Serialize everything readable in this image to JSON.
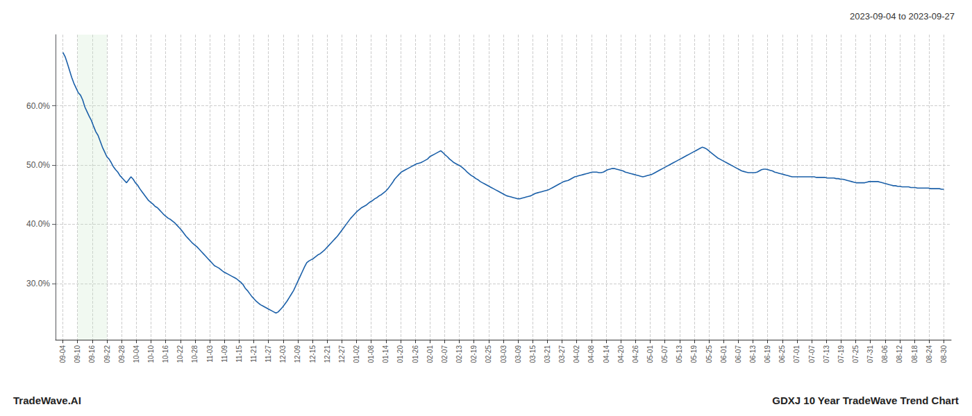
{
  "chart_data": {
    "type": "line",
    "annotations": [
      "2023-09-04 to 2023-09-27",
      "TradeWave.AI",
      "GDXJ 10 Year TradeWave Trend Chart"
    ],
    "color": "#1a5fa8",
    "grid": true,
    "highlight": {
      "from": 1,
      "to": 3,
      "color": "#c8e6c9"
    },
    "ylim": [
      0.205,
      0.72
    ],
    "yticks": [
      {
        "value": 0.3,
        "label": "30.0%"
      },
      {
        "value": 0.4,
        "label": "40.0%"
      },
      {
        "value": 0.5,
        "label": "50.0%"
      },
      {
        "value": 0.6,
        "label": "60.0%"
      }
    ],
    "xlim": [
      -0.5,
      60.5
    ],
    "xticks": [
      {
        "value": 0,
        "label": "09-04"
      },
      {
        "value": 1,
        "label": "09-10"
      },
      {
        "value": 2,
        "label": "09-16"
      },
      {
        "value": 3,
        "label": "09-22"
      },
      {
        "value": 4,
        "label": "09-28"
      },
      {
        "value": 5,
        "label": "10-04"
      },
      {
        "value": 6,
        "label": "10-10"
      },
      {
        "value": 7,
        "label": "10-16"
      },
      {
        "value": 8,
        "label": "10-22"
      },
      {
        "value": 9,
        "label": "10-28"
      },
      {
        "value": 10,
        "label": "11-03"
      },
      {
        "value": 11,
        "label": "11-09"
      },
      {
        "value": 12,
        "label": "11-15"
      },
      {
        "value": 13,
        "label": "11-21"
      },
      {
        "value": 14,
        "label": "11-27"
      },
      {
        "value": 15,
        "label": "12-03"
      },
      {
        "value": 16,
        "label": "12-09"
      },
      {
        "value": 17,
        "label": "12-15"
      },
      {
        "value": 18,
        "label": "12-21"
      },
      {
        "value": 19,
        "label": "12-27"
      },
      {
        "value": 20,
        "label": "01-02"
      },
      {
        "value": 21,
        "label": "01-08"
      },
      {
        "value": 22,
        "label": "01-14"
      },
      {
        "value": 23,
        "label": "01-20"
      },
      {
        "value": 24,
        "label": "01-26"
      },
      {
        "value": 25,
        "label": "02-01"
      },
      {
        "value": 26,
        "label": "02-07"
      },
      {
        "value": 27,
        "label": "02-13"
      },
      {
        "value": 28,
        "label": "02-19"
      },
      {
        "value": 29,
        "label": "02-25"
      },
      {
        "value": 30,
        "label": "03-03"
      },
      {
        "value": 31,
        "label": "03-09"
      },
      {
        "value": 32,
        "label": "03-15"
      },
      {
        "value": 33,
        "label": "03-21"
      },
      {
        "value": 34,
        "label": "03-27"
      },
      {
        "value": 35,
        "label": "04-02"
      },
      {
        "value": 36,
        "label": "04-08"
      },
      {
        "value": 37,
        "label": "04-14"
      },
      {
        "value": 38,
        "label": "04-20"
      },
      {
        "value": 39,
        "label": "04-26"
      },
      {
        "value": 40,
        "label": "05-01"
      },
      {
        "value": 41,
        "label": "05-07"
      },
      {
        "value": 42,
        "label": "05-13"
      },
      {
        "value": 43,
        "label": "05-19"
      },
      {
        "value": 44,
        "label": "05-25"
      },
      {
        "value": 45,
        "label": "06-01"
      },
      {
        "value": 46,
        "label": "06-07"
      },
      {
        "value": 47,
        "label": "06-13"
      },
      {
        "value": 48,
        "label": "06-19"
      },
      {
        "value": 49,
        "label": "06-25"
      },
      {
        "value": 50,
        "label": "07-01"
      },
      {
        "value": 51,
        "label": "07-07"
      },
      {
        "value": 52,
        "label": "07-13"
      },
      {
        "value": 53,
        "label": "07-19"
      },
      {
        "value": 54,
        "label": "07-25"
      },
      {
        "value": 55,
        "label": "07-31"
      },
      {
        "value": 56,
        "label": "08-06"
      },
      {
        "value": 57,
        "label": "08-12"
      },
      {
        "value": 58,
        "label": "08-18"
      },
      {
        "value": 59,
        "label": "08-24"
      },
      {
        "value": 60,
        "label": "08-30"
      }
    ],
    "values": [
      0.69,
      0.683,
      0.672,
      0.66,
      0.648,
      0.638,
      0.63,
      0.622,
      0.618,
      0.61,
      0.598,
      0.59,
      0.582,
      0.575,
      0.565,
      0.556,
      0.55,
      0.54,
      0.53,
      0.522,
      0.514,
      0.51,
      0.504,
      0.497,
      0.492,
      0.488,
      0.482,
      0.478,
      0.474,
      0.47,
      0.475,
      0.48,
      0.476,
      0.47,
      0.466,
      0.46,
      0.455,
      0.45,
      0.445,
      0.44,
      0.437,
      0.434,
      0.43,
      0.428,
      0.424,
      0.42,
      0.416,
      0.413,
      0.41,
      0.408,
      0.405,
      0.402,
      0.398,
      0.394,
      0.39,
      0.385,
      0.38,
      0.376,
      0.372,
      0.368,
      0.365,
      0.362,
      0.358,
      0.354,
      0.35,
      0.346,
      0.342,
      0.338,
      0.334,
      0.33,
      0.328,
      0.326,
      0.323,
      0.32,
      0.318,
      0.316,
      0.314,
      0.312,
      0.31,
      0.308,
      0.305,
      0.302,
      0.298,
      0.292,
      0.288,
      0.283,
      0.278,
      0.274,
      0.27,
      0.267,
      0.264,
      0.262,
      0.26,
      0.258,
      0.256,
      0.254,
      0.252,
      0.25,
      0.252,
      0.256,
      0.26,
      0.265,
      0.27,
      0.276,
      0.282,
      0.288,
      0.296,
      0.304,
      0.312,
      0.32,
      0.328,
      0.335,
      0.338,
      0.34,
      0.342,
      0.345,
      0.348,
      0.35,
      0.353,
      0.356,
      0.36,
      0.364,
      0.368,
      0.372,
      0.376,
      0.38,
      0.385,
      0.39,
      0.395,
      0.4,
      0.405,
      0.41,
      0.414,
      0.418,
      0.422,
      0.425,
      0.428,
      0.43,
      0.432,
      0.435,
      0.438,
      0.44,
      0.443,
      0.445,
      0.448,
      0.45,
      0.453,
      0.456,
      0.46,
      0.465,
      0.47,
      0.476,
      0.48,
      0.484,
      0.488,
      0.49,
      0.492,
      0.494,
      0.496,
      0.498,
      0.5,
      0.502,
      0.503,
      0.504,
      0.506,
      0.508,
      0.51,
      0.514,
      0.516,
      0.518,
      0.52,
      0.522,
      0.524,
      0.521,
      0.517,
      0.514,
      0.51,
      0.507,
      0.504,
      0.502,
      0.5,
      0.498,
      0.495,
      0.492,
      0.488,
      0.485,
      0.482,
      0.48,
      0.477,
      0.475,
      0.472,
      0.47,
      0.468,
      0.466,
      0.464,
      0.462,
      0.46,
      0.458,
      0.456,
      0.454,
      0.452,
      0.45,
      0.448,
      0.447,
      0.446,
      0.445,
      0.444,
      0.443,
      0.443,
      0.444,
      0.445,
      0.446,
      0.447,
      0.448,
      0.45,
      0.452,
      0.453,
      0.454,
      0.455,
      0.456,
      0.457,
      0.458,
      0.46,
      0.462,
      0.464,
      0.466,
      0.468,
      0.47,
      0.472,
      0.473,
      0.474,
      0.476,
      0.478,
      0.48,
      0.481,
      0.482,
      0.483,
      0.484,
      0.485,
      0.486,
      0.487,
      0.488,
      0.488,
      0.488,
      0.487,
      0.487,
      0.488,
      0.49,
      0.492,
      0.493,
      0.494,
      0.494,
      0.493,
      0.492,
      0.491,
      0.49,
      0.488,
      0.487,
      0.486,
      0.485,
      0.484,
      0.483,
      0.482,
      0.481,
      0.48,
      0.481,
      0.482,
      0.483,
      0.484,
      0.486,
      0.488,
      0.49,
      0.492,
      0.494,
      0.496,
      0.498,
      0.5,
      0.502,
      0.504,
      0.506,
      0.508,
      0.51,
      0.512,
      0.514,
      0.516,
      0.518,
      0.52,
      0.522,
      0.524,
      0.526,
      0.528,
      0.53,
      0.529,
      0.527,
      0.524,
      0.521,
      0.518,
      0.515,
      0.512,
      0.51,
      0.508,
      0.506,
      0.504,
      0.502,
      0.5,
      0.498,
      0.496,
      0.494,
      0.492,
      0.49,
      0.489,
      0.488,
      0.487,
      0.487,
      0.487,
      0.487,
      0.488,
      0.49,
      0.492,
      0.493,
      0.493,
      0.492,
      0.491,
      0.49,
      0.488,
      0.487,
      0.486,
      0.485,
      0.484,
      0.483,
      0.482,
      0.481,
      0.48,
      0.48,
      0.48,
      0.48,
      0.48,
      0.48,
      0.48,
      0.48,
      0.48,
      0.48,
      0.48,
      0.479,
      0.479,
      0.479,
      0.479,
      0.479,
      0.478,
      0.478,
      0.478,
      0.478,
      0.477,
      0.477,
      0.476,
      0.476,
      0.475,
      0.474,
      0.473,
      0.472,
      0.471,
      0.47,
      0.47,
      0.47,
      0.47,
      0.47,
      0.471,
      0.472,
      0.472,
      0.472,
      0.472,
      0.472,
      0.471,
      0.47,
      0.469,
      0.468,
      0.467,
      0.466,
      0.465,
      0.465,
      0.464,
      0.464,
      0.463,
      0.463,
      0.463,
      0.463,
      0.462,
      0.462,
      0.462,
      0.461,
      0.461,
      0.461,
      0.461,
      0.461,
      0.461,
      0.46,
      0.46,
      0.46,
      0.46,
      0.46,
      0.459,
      0.459
    ]
  }
}
